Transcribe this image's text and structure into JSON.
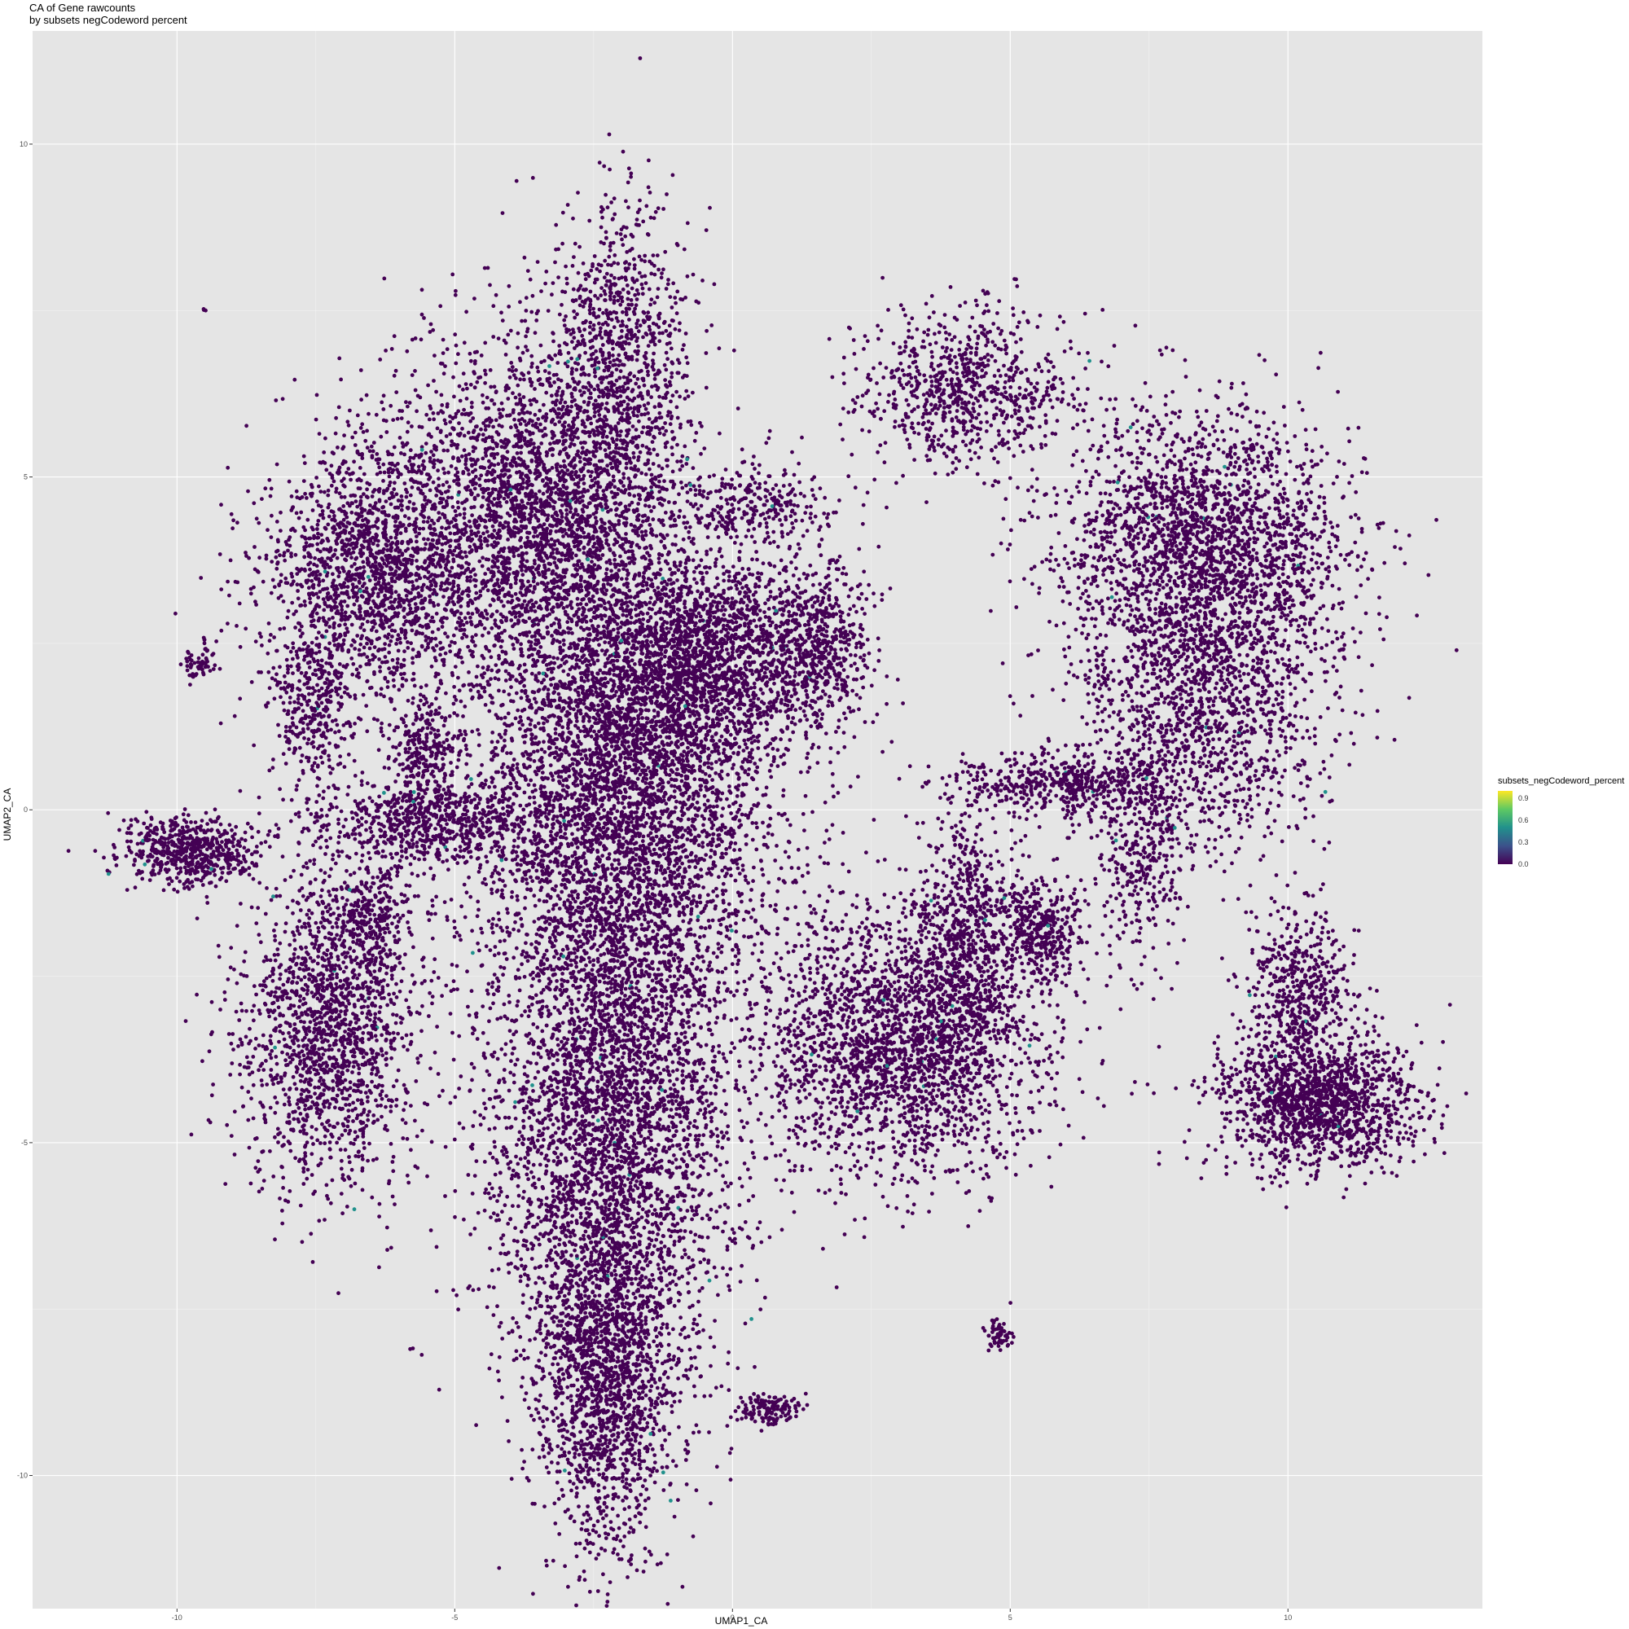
{
  "chart_data": {
    "type": "scatter",
    "title": "CA of Gene rawcounts",
    "subtitle": "by subsets negCodeword percent",
    "xlabel": "UMAP1_CA",
    "ylabel": "UMAP2_CA",
    "xlim": [
      -12.6,
      13.5
    ],
    "ylim": [
      -12.0,
      11.7
    ],
    "xticks": [
      -10,
      -5,
      0,
      5,
      10
    ],
    "yticks": [
      -10,
      -5,
      0,
      5,
      10
    ],
    "grid": true,
    "legend_position": "right",
    "color_variable": "subsets_negCodeword_percent",
    "colorbar": {
      "range": [
        0,
        1.0
      ],
      "ticks": [
        "0.0",
        "0.3",
        "0.6",
        "0.9"
      ],
      "palette": [
        "#440154",
        "#3b528b",
        "#21918c",
        "#5ec962",
        "#fde725"
      ]
    },
    "point_color": "#440154",
    "clusters": [
      {
        "x": -1.9,
        "y": 0.5,
        "sx": 1.4,
        "sy": 1.8,
        "n": 4500
      },
      {
        "x": -2.2,
        "y": -4.5,
        "sx": 1.1,
        "sy": 2.3,
        "n": 4200
      },
      {
        "x": -2.3,
        "y": -8.5,
        "sx": 0.55,
        "sy": 1.3,
        "n": 1500
      },
      {
        "x": -3.5,
        "y": 4.5,
        "sx": 1.3,
        "sy": 1.3,
        "n": 3000
      },
      {
        "x": -6.5,
        "y": 3.5,
        "sx": 1.0,
        "sy": 1.0,
        "n": 1800
      },
      {
        "x": -2.0,
        "y": 6.8,
        "sx": 0.6,
        "sy": 1.2,
        "n": 900
      },
      {
        "x": -0.5,
        "y": 2.3,
        "sx": 1.0,
        "sy": 0.8,
        "n": 1500
      },
      {
        "x": 1.5,
        "y": 2.5,
        "sx": 0.5,
        "sy": 0.6,
        "n": 600
      },
      {
        "x": 3.0,
        "y": -3.5,
        "sx": 1.3,
        "sy": 1.0,
        "n": 2400
      },
      {
        "x": 4.2,
        "y": -2.0,
        "sx": 0.5,
        "sy": 1.0,
        "n": 700
      },
      {
        "x": 8.5,
        "y": 4.0,
        "sx": 1.3,
        "sy": 1.0,
        "n": 2400
      },
      {
        "x": 8.5,
        "y": 1.5,
        "sx": 1.1,
        "sy": 1.1,
        "n": 1400
      },
      {
        "x": 4.2,
        "y": 6.3,
        "sx": 0.9,
        "sy": 0.6,
        "n": 800
      },
      {
        "x": 10.5,
        "y": -4.4,
        "sx": 0.9,
        "sy": 0.5,
        "n": 1500
      },
      {
        "x": 10.2,
        "y": -2.7,
        "sx": 0.5,
        "sy": 0.6,
        "n": 500
      },
      {
        "x": -7.3,
        "y": -3.3,
        "sx": 0.8,
        "sy": 1.2,
        "n": 1700
      },
      {
        "x": -6.5,
        "y": -1.6,
        "sx": 0.3,
        "sy": 0.4,
        "n": 250
      },
      {
        "x": -9.8,
        "y": -0.6,
        "sx": 0.6,
        "sy": 0.25,
        "n": 600
      },
      {
        "x": -5.5,
        "y": -0.2,
        "sx": 1.1,
        "sy": 0.3,
        "n": 700
      },
      {
        "x": -5.5,
        "y": 0.8,
        "sx": 0.3,
        "sy": 0.4,
        "n": 250
      },
      {
        "x": -7.6,
        "y": 1.5,
        "sx": 0.3,
        "sy": 0.6,
        "n": 300
      },
      {
        "x": 6.0,
        "y": 0.4,
        "sx": 1.0,
        "sy": 0.25,
        "n": 500
      },
      {
        "x": 7.3,
        "y": -0.8,
        "sx": 0.4,
        "sy": 0.8,
        "n": 300
      },
      {
        "x": 5.5,
        "y": -1.8,
        "sx": 0.4,
        "sy": 0.35,
        "n": 400
      },
      {
        "x": 0.5,
        "y": 4.5,
        "sx": 0.6,
        "sy": 0.3,
        "n": 250
      },
      {
        "x": 0.6,
        "y": -9.0,
        "sx": 0.3,
        "sy": 0.12,
        "n": 150
      },
      {
        "x": 4.8,
        "y": -7.9,
        "sx": 0.12,
        "sy": 0.1,
        "n": 60
      },
      {
        "x": -9.6,
        "y": 2.2,
        "sx": 0.15,
        "sy": 0.12,
        "n": 60
      },
      {
        "x": -9.5,
        "y": 7.5,
        "sx": 0.03,
        "sy": 0.03,
        "n": 3
      },
      {
        "x": -4.6,
        "y": -7.2,
        "sx": 0.03,
        "sy": 0.03,
        "n": 2
      }
    ]
  }
}
